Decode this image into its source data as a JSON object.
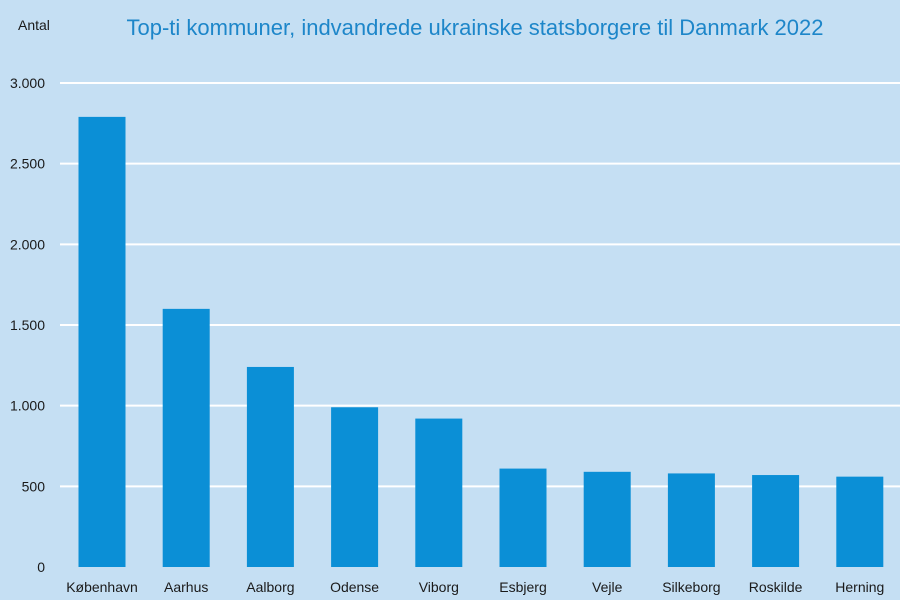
{
  "chart_data": {
    "type": "bar",
    "title": "Top-ti kommuner, indvandrede ukrainske statsborgere til Danmark 2022",
    "ylabel": "Antal",
    "xlabel": "",
    "categories": [
      "København",
      "Aarhus",
      "Aalborg",
      "Odense",
      "Viborg",
      "Esbjerg",
      "Vejle",
      "Silkeborg",
      "Roskilde",
      "Herning"
    ],
    "values": [
      2790,
      1600,
      1240,
      990,
      920,
      610,
      590,
      580,
      570,
      560
    ],
    "ylim": [
      0,
      3000
    ],
    "yticks": [
      0,
      500,
      1000,
      1500,
      2000,
      2500,
      3000
    ],
    "ytick_labels": [
      "0",
      "500",
      "1.000",
      "1.500",
      "2.000",
      "2.500",
      "3.000"
    ],
    "grid": true,
    "colors": {
      "bar": "#0b8fd6",
      "background": "#c5dff3",
      "grid": "#ffffff",
      "title": "#1d86c9"
    }
  }
}
